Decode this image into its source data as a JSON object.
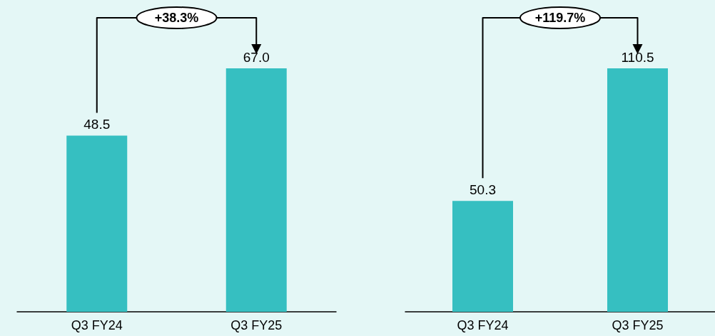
{
  "chart_data": [
    {
      "type": "bar",
      "categories": [
        "Q3 FY24",
        "Q3 FY25"
      ],
      "values": [
        48.5,
        67.0
      ],
      "value_labels": [
        "48.5",
        "67.0"
      ],
      "color": "#36bfc1",
      "annotations": [
        "+38.3%"
      ]
    },
    {
      "type": "bar",
      "categories": [
        "Q3 FY24",
        "Q3 FY25"
      ],
      "values": [
        50.3,
        110.5
      ],
      "value_labels": [
        "50.3",
        "110.5"
      ],
      "color": "#36bfc1",
      "annotations": [
        "+119.7%"
      ]
    }
  ]
}
